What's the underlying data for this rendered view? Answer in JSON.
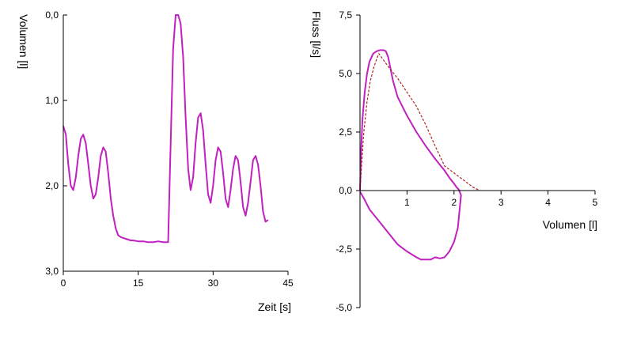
{
  "chart_data": [
    {
      "type": "line",
      "xlabel": "Zeit [s]",
      "ylabel": "Volumen [l]",
      "xlim": [
        0,
        45
      ],
      "ylim": [
        3.0,
        0.0
      ],
      "y_inverted": true,
      "grid": false,
      "x_ticks": [
        "0",
        "15",
        "30",
        "45"
      ],
      "y_ticks": [
        "0,0",
        "1,0",
        "2,0",
        "3,0"
      ],
      "x_tick_values": [
        0,
        15,
        30,
        45
      ],
      "y_tick_values": [
        0,
        1,
        2,
        3
      ],
      "series": [
        {
          "color": "#c020c0",
          "x": [
            0,
            0.5,
            1,
            1.5,
            2,
            2.5,
            3,
            3.5,
            4,
            4.5,
            5,
            5.5,
            6,
            6.5,
            7,
            7.5,
            8,
            8.5,
            9,
            9.5,
            10,
            10.5,
            11,
            11.5,
            12,
            12.5,
            13,
            13.5,
            14,
            15,
            16,
            17,
            18,
            19,
            20,
            21,
            21.5,
            22,
            22.5,
            23,
            23.5,
            24,
            24.5,
            25,
            25.5,
            26,
            26.5,
            27,
            27.5,
            28,
            28.5,
            29,
            29.5,
            30,
            30.5,
            31,
            31.5,
            32,
            32.5,
            33,
            33.5,
            34,
            34.5,
            35,
            35.5,
            36,
            36.5,
            37,
            37.5,
            38,
            38.5,
            39,
            39.5,
            40,
            40.5,
            41
          ],
          "y": [
            1.3,
            1.4,
            1.75,
            2.0,
            2.05,
            1.9,
            1.65,
            1.45,
            1.4,
            1.5,
            1.75,
            2.0,
            2.15,
            2.1,
            1.9,
            1.65,
            1.55,
            1.6,
            1.85,
            2.15,
            2.35,
            2.5,
            2.58,
            2.6,
            2.61,
            2.62,
            2.63,
            2.64,
            2.64,
            2.65,
            2.65,
            2.66,
            2.66,
            2.65,
            2.66,
            2.66,
            1.5,
            0.4,
            0.0,
            0.0,
            0.1,
            0.5,
            1.2,
            1.8,
            2.05,
            1.9,
            1.5,
            1.2,
            1.15,
            1.35,
            1.75,
            2.1,
            2.2,
            2.0,
            1.7,
            1.55,
            1.6,
            1.85,
            2.15,
            2.25,
            2.05,
            1.8,
            1.65,
            1.7,
            1.95,
            2.25,
            2.35,
            2.2,
            1.95,
            1.7,
            1.65,
            1.75,
            2.0,
            2.3,
            2.42,
            2.4
          ]
        }
      ]
    },
    {
      "type": "line",
      "xlabel": "Volumen [l]",
      "ylabel": "Fluss [l/s]",
      "xlim": [
        0,
        5
      ],
      "ylim": [
        -5.0,
        7.5
      ],
      "grid": false,
      "x_ticks": [
        "1",
        "2",
        "3",
        "4",
        "5"
      ],
      "y_ticks": [
        "7,5",
        "5,0",
        "2,5",
        "0,0",
        "-2,5",
        "-5,0"
      ],
      "x_tick_values": [
        1,
        2,
        3,
        4,
        5
      ],
      "y_tick_values": [
        7.5,
        5.0,
        2.5,
        0.0,
        -2.5,
        -5.0
      ],
      "series": [
        {
          "color": "#c020c0",
          "style": "solid",
          "x": [
            0.0,
            0.02,
            0.05,
            0.1,
            0.15,
            0.2,
            0.28,
            0.35,
            0.42,
            0.5,
            0.55,
            0.6,
            0.65,
            0.7,
            0.8,
            1.0,
            1.2,
            1.4,
            1.6,
            1.8,
            1.9,
            2.0,
            2.05,
            2.1,
            2.15,
            2.12,
            2.08,
            2.0,
            1.9,
            1.8,
            1.7,
            1.6,
            1.5,
            1.4,
            1.3,
            1.2,
            1.0,
            0.8,
            0.6,
            0.4,
            0.2,
            0.1,
            0.0
          ],
          "y": [
            0.0,
            1.5,
            3.0,
            4.2,
            5.0,
            5.5,
            5.85,
            5.95,
            6.0,
            6.0,
            5.95,
            5.7,
            5.2,
            4.7,
            4.0,
            3.2,
            2.5,
            1.9,
            1.35,
            0.85,
            0.55,
            0.3,
            0.15,
            0.05,
            -0.2,
            -0.8,
            -1.6,
            -2.2,
            -2.6,
            -2.85,
            -2.9,
            -2.85,
            -2.95,
            -2.95,
            -2.95,
            -2.85,
            -2.6,
            -2.3,
            -1.8,
            -1.3,
            -0.8,
            -0.4,
            -0.05
          ]
        },
        {
          "color": "#b02020",
          "style": "dashed",
          "x": [
            0.0,
            0.03,
            0.08,
            0.15,
            0.22,
            0.3,
            0.35,
            0.4,
            0.6,
            0.8,
            1.0,
            1.2,
            1.4,
            1.6,
            1.8,
            2.0,
            2.2,
            2.4,
            2.55
          ],
          "y": [
            0.0,
            1.0,
            2.5,
            3.8,
            4.7,
            5.3,
            5.6,
            5.85,
            5.3,
            4.8,
            4.2,
            3.6,
            2.8,
            1.9,
            1.05,
            0.75,
            0.45,
            0.15,
            0.0
          ]
        }
      ]
    }
  ]
}
